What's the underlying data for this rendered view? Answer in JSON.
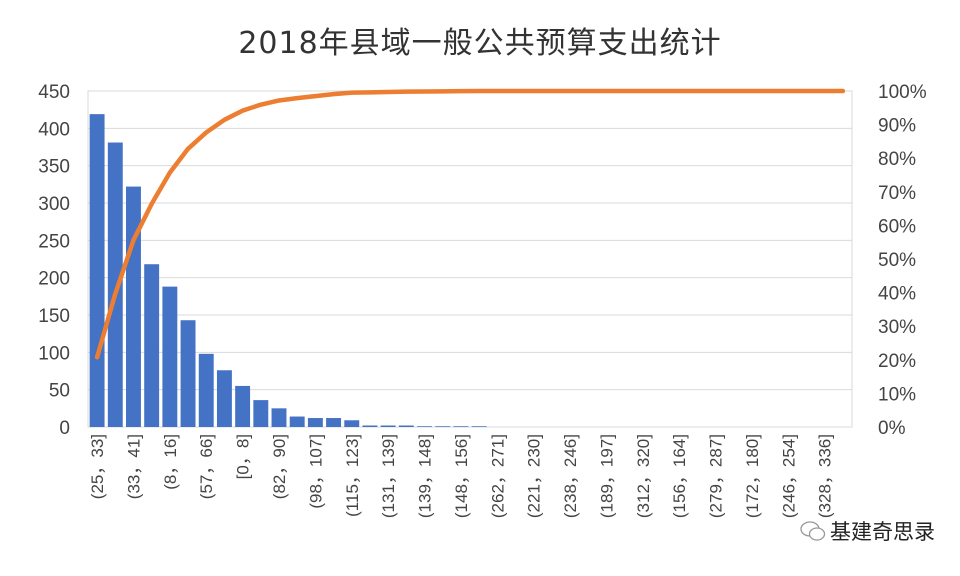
{
  "chart_data": {
    "type": "bar",
    "title": "2018年县域一般公共预算支出统计",
    "tick_labels": [
      "(25，33]",
      "(33，41]",
      "(8，16]",
      "(57，66]",
      "[0，8]",
      "(82，90]",
      "(98，107]",
      "(115，123]",
      "(131，139]",
      "(139，148]",
      "(148，156]",
      "(262，271]",
      "(221，230]",
      "(238，246]",
      "(189，197]",
      "(312，320]",
      "(156，164]",
      "(279，287]",
      "(172，180]",
      "(246，254]",
      "(328，336]"
    ],
    "label_every": 2,
    "series": [
      {
        "type": "bar",
        "axis": "left",
        "color": "#4472c4",
        "values": [
          419,
          381,
          322,
          218,
          188,
          143,
          98,
          76,
          55,
          36,
          25,
          14,
          12,
          12,
          9,
          2,
          2,
          2,
          1,
          1,
          1,
          1,
          0,
          0,
          0,
          0,
          0,
          0,
          0,
          0,
          0,
          0,
          0,
          0,
          0,
          0,
          0,
          0,
          0,
          0,
          0,
          0
        ]
      },
      {
        "type": "line",
        "axis": "right",
        "color": "#ed7d31",
        "cumulative_percent": true
      }
    ],
    "y_left": {
      "range": [
        0,
        450
      ],
      "ticks": [
        "0",
        "50",
        "100",
        "150",
        "200",
        "250",
        "300",
        "350",
        "400",
        "450"
      ]
    },
    "y_right": {
      "range": [
        0,
        100
      ],
      "ticks": [
        "0%",
        "10%",
        "20%",
        "30%",
        "40%",
        "50%",
        "60%",
        "70%",
        "80%",
        "90%",
        "100%"
      ]
    },
    "grid": true,
    "legend": "none"
  },
  "watermark": {
    "text": "基建奇思录",
    "icon": "wechat-icon"
  }
}
